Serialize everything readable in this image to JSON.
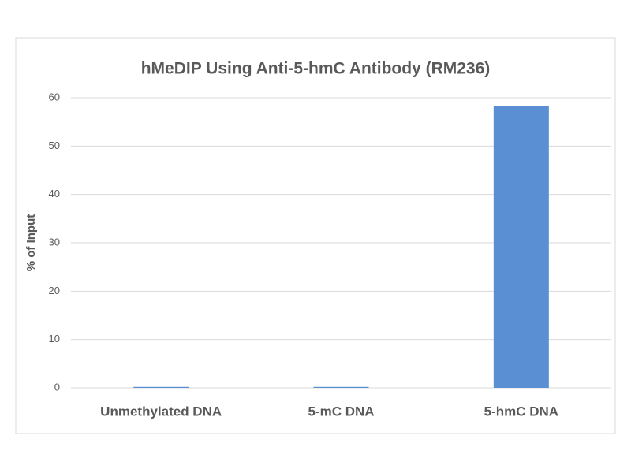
{
  "chart_data": {
    "type": "bar",
    "title": "hMeDIP Using Anti-5-hmC Antibody (RM236)",
    "y_label": "% of Input",
    "categories": [
      "Unmethylated DNA",
      "5-mC DNA",
      "5-hmC DNA"
    ],
    "values": [
      0.2,
      0.2,
      58.3
    ],
    "color": "#5b8fd3",
    "ylim": [
      0,
      60
    ],
    "yticks": [
      0,
      10,
      20,
      30,
      40,
      50,
      60
    ],
    "grid": true
  }
}
